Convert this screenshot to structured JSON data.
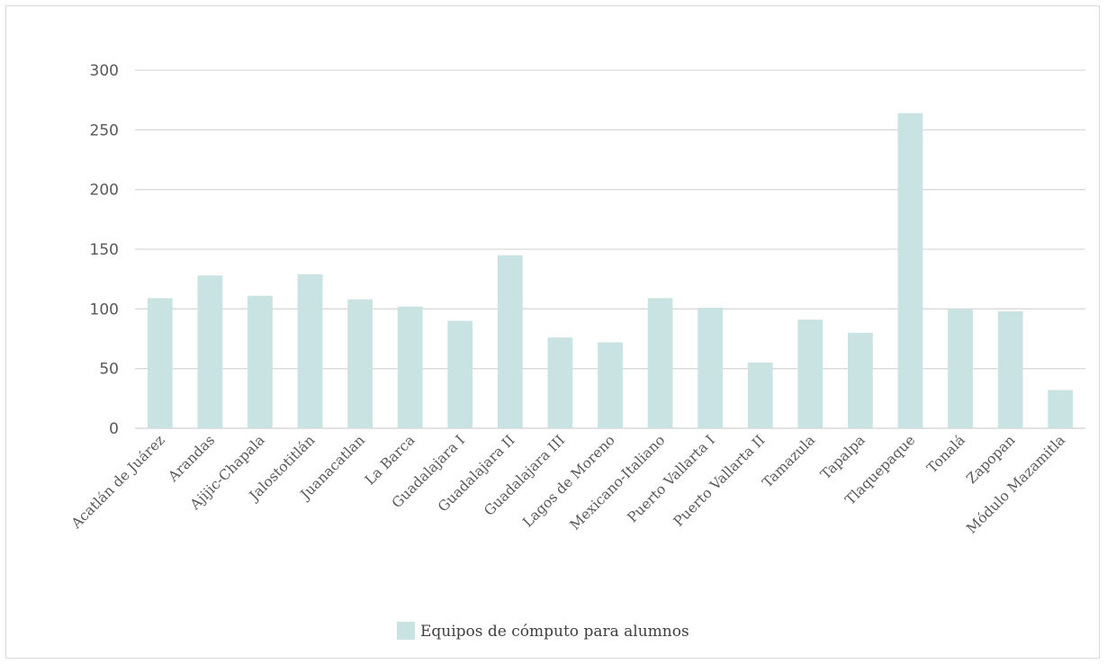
{
  "chart_data": {
    "type": "bar",
    "title": "",
    "xlabel": "",
    "ylabel": "",
    "ylim": [
      0,
      300
    ],
    "yticks": [
      0,
      50,
      100,
      150,
      200,
      250,
      300
    ],
    "grid": true,
    "legend_position": "bottom",
    "categories": [
      "Acatlán de Juárez",
      "Arandas",
      "Ajijic-Chapala",
      "Jalostotitlán",
      "Juanacatlan",
      "La Barca",
      "Guadalajara I",
      "Guadalajara II",
      "Guadalajara III",
      "Lagos de Moreno",
      "Mexicano-Italiano",
      "Puerto Vallarta I",
      "Puerto Vallarta II",
      "Tamazula",
      "Tapalpa",
      "Tlaquepaque",
      "Tonalá",
      "Zapopan",
      "Módulo Mazamitla"
    ],
    "series": [
      {
        "name": "Equipos de cómputo para alumnos",
        "color": "#c9e2e2",
        "values": [
          109,
          128,
          111,
          129,
          108,
          102,
          90,
          145,
          76,
          72,
          109,
          101,
          55,
          91,
          80,
          264,
          100,
          98,
          32
        ]
      }
    ]
  }
}
